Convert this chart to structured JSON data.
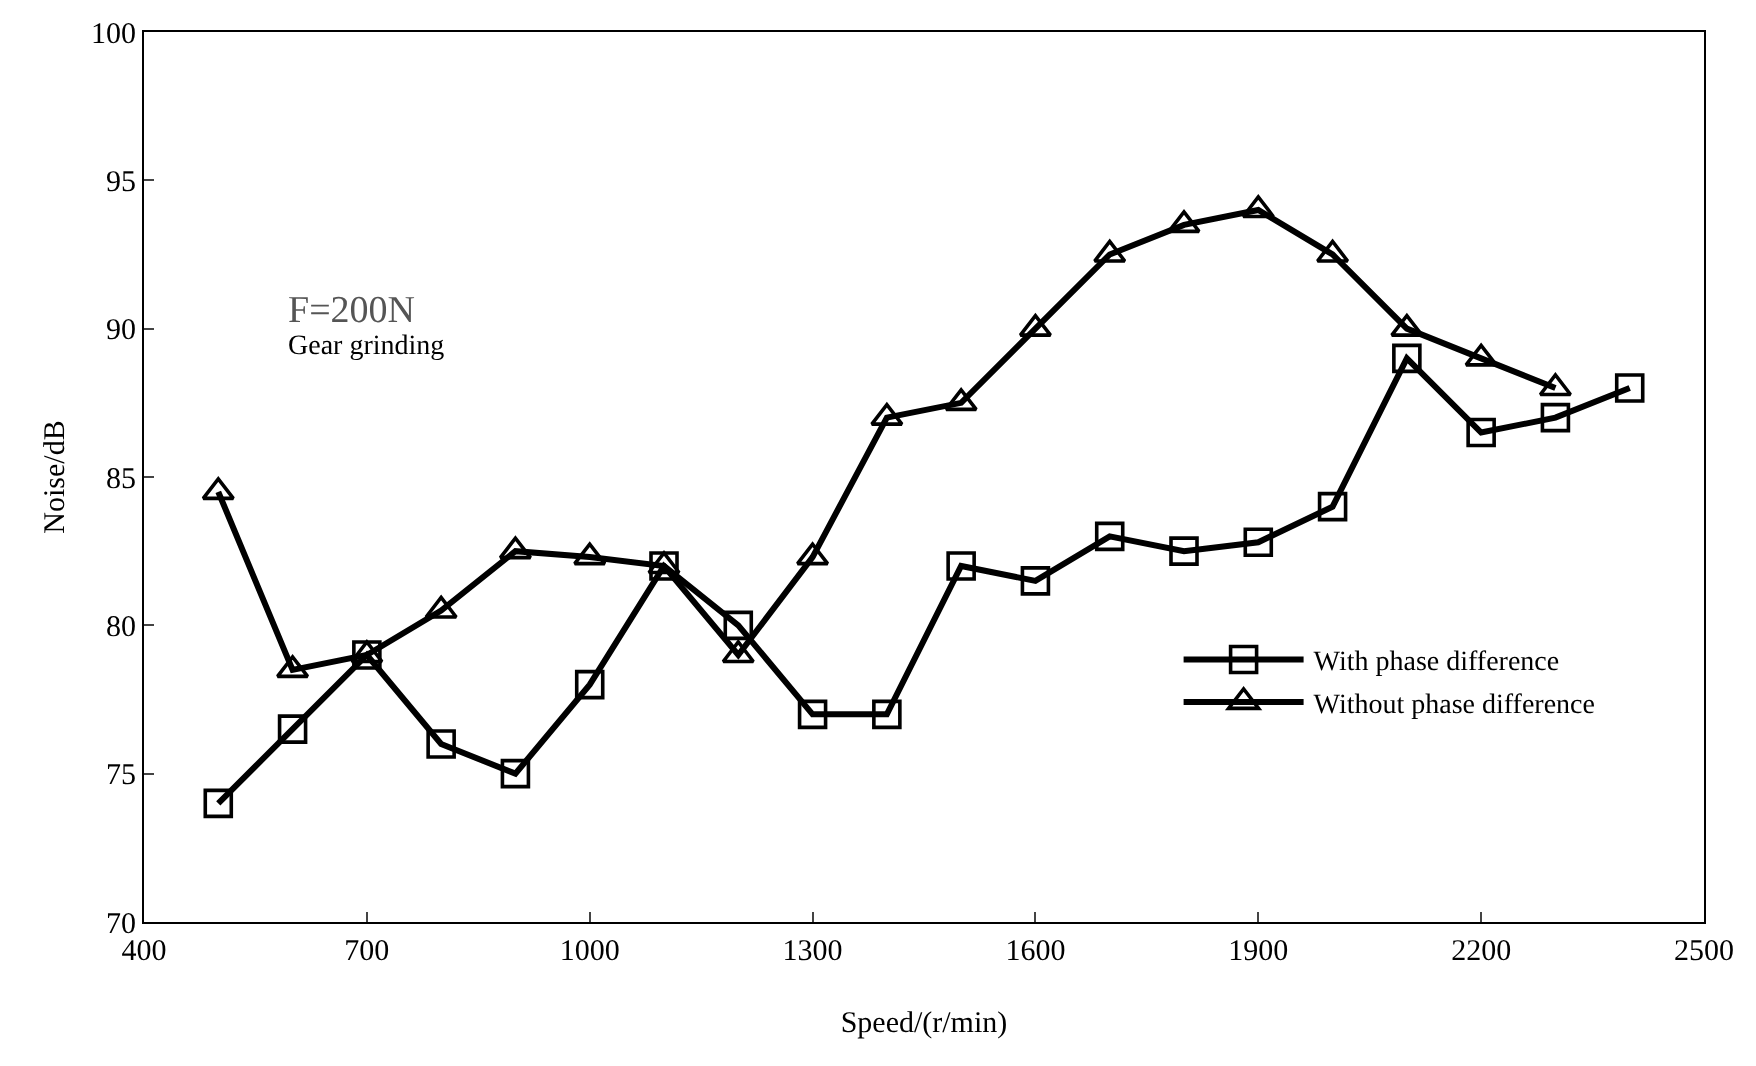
{
  "chart_data": {
    "type": "line",
    "xlabel": "Speed/(r/min)",
    "ylabel": "Noise/dB",
    "x": [
      500,
      600,
      700,
      800,
      900,
      1000,
      1100,
      1200,
      1300,
      1400,
      1500,
      1600,
      1700,
      1800,
      1900,
      2000,
      2100,
      2200,
      2300,
      2400
    ],
    "series": [
      {
        "name": "With phase difference",
        "color": "#000000",
        "marker": "square",
        "values": [
          74,
          76.5,
          79,
          76,
          75,
          78,
          82,
          80,
          77,
          77,
          82,
          81.5,
          83,
          82.5,
          82.8,
          84,
          89,
          86.5,
          87,
          88
        ]
      },
      {
        "name": "Without phase difference",
        "color": "#000000",
        "marker": "triangle",
        "values": [
          84.5,
          78.5,
          79,
          80.5,
          82.5,
          82.3,
          82,
          79,
          82.3,
          87,
          87.5,
          90,
          92.5,
          93.5,
          94,
          92.5,
          90,
          89,
          88,
          null
        ]
      }
    ],
    "xlim": [
      400,
      2500
    ],
    "xticks": [
      400,
      700,
      1000,
      1300,
      1600,
      1900,
      2200,
      2500
    ],
    "ylim": [
      70,
      100
    ],
    "yticks": [
      70,
      75,
      80,
      85,
      90,
      95,
      100
    ],
    "grid": false,
    "legend": "bottom right",
    "line_style": "solid",
    "annotations": [
      "F=200N",
      "Gear grinding"
    ]
  }
}
